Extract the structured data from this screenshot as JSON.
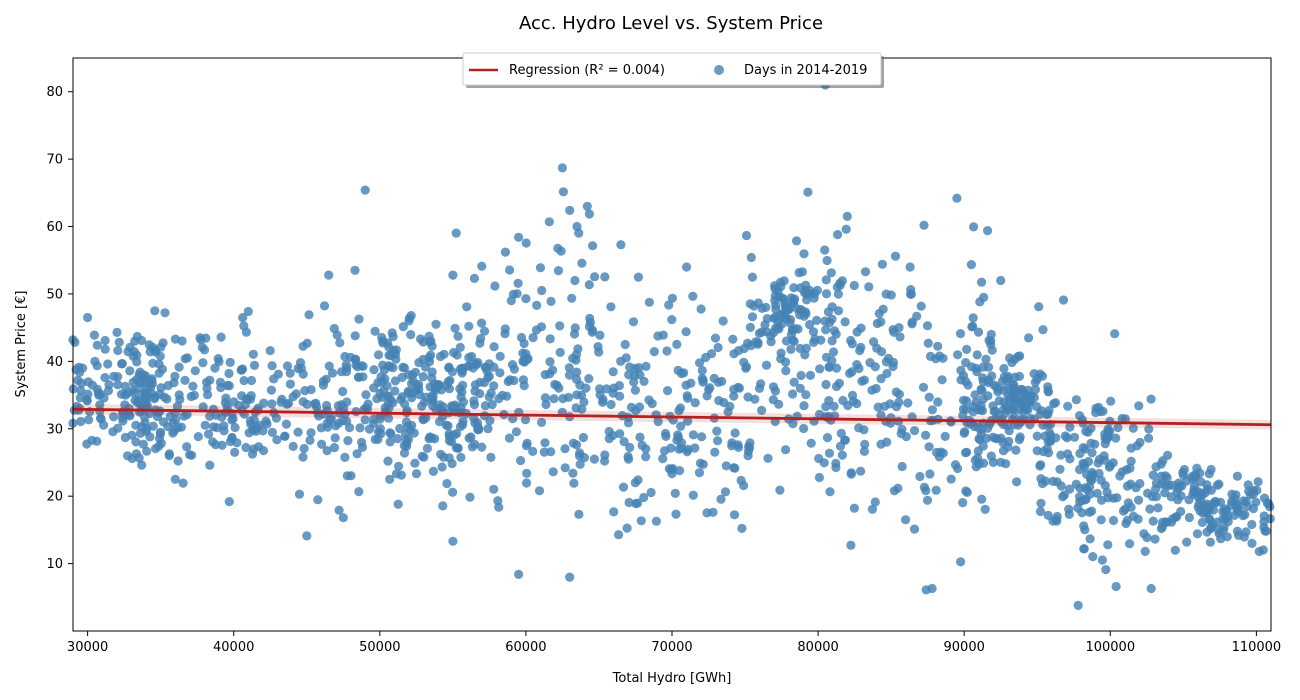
{
  "chart_data": {
    "type": "scatter",
    "title": "Acc. Hydro Level vs. System Price",
    "xlabel": "Total Hydro [GWh]",
    "ylabel": "System Price [€]",
    "xlim": [
      29000,
      111000
    ],
    "ylim": [
      0,
      85
    ],
    "xticks": [
      30000,
      40000,
      50000,
      60000,
      70000,
      80000,
      90000,
      100000,
      110000
    ],
    "yticks": [
      10,
      20,
      30,
      40,
      50,
      60,
      70,
      80
    ],
    "grid": false,
    "legend_position": "top-center",
    "series": [
      {
        "name": "Days in 2014-2019",
        "kind": "scatter",
        "color": "#4682b4",
        "clusters": [
          {
            "x": [
              29000,
              35000
            ],
            "y": [
              25,
              47
            ]
          },
          {
            "x": [
              32000,
              45000
            ],
            "y": [
              19,
              48
            ]
          },
          {
            "x": [
              45000,
              55000
            ],
            "y": [
              14,
              54
            ]
          },
          {
            "x": [
              50000,
              58000
            ],
            "y": [
              20,
              50
            ]
          },
          {
            "x": [
              55000,
              65000
            ],
            "y": [
              8,
              69
            ]
          },
          {
            "x": [
              65000,
              75000
            ],
            "y": [
              9,
              55
            ]
          },
          {
            "x": [
              75000,
              82000
            ],
            "y": [
              15,
              65
            ]
          },
          {
            "x": [
              77000,
              80000
            ],
            "y": [
              40,
              55
            ]
          },
          {
            "x": [
              80000,
              85000
            ],
            "y": [
              10,
              62
            ]
          },
          {
            "x": [
              85000,
              92000
            ],
            "y": [
              6,
              64
            ]
          },
          {
            "x": [
              90000,
              96000
            ],
            "y": [
              20,
              48
            ]
          },
          {
            "x": [
              92000,
              95000
            ],
            "y": [
              27,
              40
            ]
          },
          {
            "x": [
              95000,
              100000
            ],
            "y": [
              4,
              45
            ]
          },
          {
            "x": [
              98000,
              103000
            ],
            "y": [
              6,
              40
            ]
          },
          {
            "x": [
              103000,
              107000
            ],
            "y": [
              10,
              30
            ]
          },
          {
            "x": [
              106000,
              111000
            ],
            "y": [
              11,
              25
            ]
          }
        ],
        "points": [
          [
            49000,
            65.4
          ],
          [
            62500,
            68.7
          ],
          [
            64200,
            63.0
          ],
          [
            63000,
            62.4
          ],
          [
            61600,
            60.7
          ],
          [
            63500,
            60.0
          ],
          [
            79300,
            65.1
          ],
          [
            89500,
            64.2
          ],
          [
            91600,
            59.4
          ],
          [
            82000,
            61.5
          ],
          [
            46500,
            52.8
          ],
          [
            48300,
            53.5
          ],
          [
            59500,
            58.4
          ],
          [
            58600,
            56.2
          ],
          [
            61000,
            53.9
          ],
          [
            66500,
            57.3
          ],
          [
            71000,
            54.0
          ],
          [
            80500,
            81.0
          ],
          [
            97800,
            3.8
          ],
          [
            87400,
            6.1
          ],
          [
            87800,
            6.3
          ],
          [
            100400,
            6.6
          ],
          [
            102800,
            6.3
          ],
          [
            63000,
            8.0
          ],
          [
            59500,
            8.4
          ],
          [
            45000,
            14.1
          ],
          [
            55000,
            13.3
          ],
          [
            110200,
            11.8
          ],
          [
            109700,
            13.0
          ],
          [
            108700,
            14.8
          ],
          [
            30000,
            46.5
          ],
          [
            34600,
            47.5
          ],
          [
            35300,
            47.2
          ],
          [
            41000,
            47.4
          ],
          [
            31200,
            43.1
          ],
          [
            33700,
            43.1
          ],
          [
            29000,
            43.2
          ],
          [
            30500,
            40.0
          ],
          [
            35000,
            42.1
          ],
          [
            38000,
            41.7
          ],
          [
            42500,
            41.6
          ],
          [
            48000,
            40.6
          ],
          [
            53500,
            43.0
          ],
          [
            100300,
            44.1
          ],
          [
            96800,
            49.1
          ],
          [
            95100,
            48.1
          ],
          [
            92500,
            52.0
          ],
          [
            85300,
            55.6
          ],
          [
            84400,
            54.4
          ],
          [
            86300,
            54.0
          ],
          [
            75500,
            52.5
          ],
          [
            67700,
            52.5
          ],
          [
            66800,
            42.5
          ],
          [
            59000,
            49.0
          ],
          [
            55000,
            52.8
          ],
          [
            52000,
            46.0
          ],
          [
            39700,
            19.2
          ],
          [
            36000,
            22.5
          ],
          [
            44500,
            20.3
          ],
          [
            47500,
            16.8
          ]
        ]
      },
      {
        "name": "Regression (R² = 0.004)",
        "kind": "line",
        "color": "#b22222",
        "x": [
          29000,
          111000
        ],
        "y": [
          32.9,
          30.6
        ]
      }
    ]
  }
}
